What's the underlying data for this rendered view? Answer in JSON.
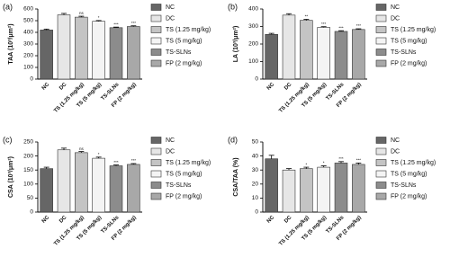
{
  "chart_data": [
    {
      "type": "bar",
      "panel_label": "(a)",
      "y_label": "TAA (10³/μm²)",
      "categories": [
        "NC",
        "DC",
        "TS (1.25 mg/kg)",
        "TS (5 mg/kg)",
        "TS-SLNs",
        "FP (2 mg/kg)"
      ],
      "values": [
        420,
        550,
        530,
        495,
        440,
        450
      ],
      "errors": [
        8,
        12,
        8,
        6,
        5,
        6
      ],
      "annotations": [
        null,
        null,
        "ns",
        "*",
        "***",
        "***"
      ],
      "colors": [
        "#666666",
        "#e6e6e6",
        "#c4c4c4",
        "#f4f4f4",
        "#8c8c8c",
        "#a8a8a8"
      ],
      "ylim": [
        0,
        600
      ],
      "yticks": [
        0,
        100,
        200,
        300,
        400,
        500,
        600
      ]
    },
    {
      "type": "bar",
      "panel_label": "(b)",
      "y_label": "LA (10³/μm²)",
      "categories": [
        "NC",
        "DC",
        "TS (1.25 mg/kg)",
        "TS (5 mg/kg)",
        "TS-SLNs",
        "FP (2 mg/kg)"
      ],
      "values": [
        255,
        365,
        335,
        295,
        272,
        283
      ],
      "errors": [
        6,
        8,
        6,
        4,
        4,
        4
      ],
      "annotations": [
        null,
        null,
        "**",
        "***",
        "***",
        "***"
      ],
      "colors": [
        "#666666",
        "#e6e6e6",
        "#c4c4c4",
        "#f4f4f4",
        "#8c8c8c",
        "#a8a8a8"
      ],
      "ylim": [
        0,
        400
      ],
      "yticks": [
        0,
        100,
        200,
        300,
        400
      ]
    },
    {
      "type": "bar",
      "panel_label": "(c)",
      "y_label": "CSA (10³/μm²)",
      "categories": [
        "NC",
        "DC",
        "TS (1.25 mg/kg)",
        "TS (5 mg/kg)",
        "TS-SLNs",
        "FP (2 mg/kg)"
      ],
      "values": [
        155,
        222,
        212,
        192,
        165,
        170
      ],
      "errors": [
        5,
        6,
        4,
        4,
        3,
        3
      ],
      "annotations": [
        null,
        null,
        "ns",
        "*",
        "***",
        "***"
      ],
      "colors": [
        "#666666",
        "#e6e6e6",
        "#c4c4c4",
        "#f4f4f4",
        "#8c8c8c",
        "#a8a8a8"
      ],
      "ylim": [
        0,
        250
      ],
      "yticks": [
        0,
        50,
        100,
        150,
        200,
        250
      ]
    },
    {
      "type": "bar",
      "panel_label": "(d)",
      "y_label": "CSA/TAA (%)",
      "categories": [
        "NC",
        "DC",
        "TS (1.25 mg/kg)",
        "TS (5 mg/kg)",
        "TS-SLNs",
        "FP (2 mg/kg)"
      ],
      "values": [
        38,
        30,
        31,
        32,
        35,
        34
      ],
      "errors": [
        2.5,
        1,
        1,
        1,
        1,
        1
      ],
      "annotations": [
        null,
        null,
        "*",
        "*",
        "***",
        "***"
      ],
      "colors": [
        "#666666",
        "#e6e6e6",
        "#c4c4c4",
        "#f4f4f4",
        "#8c8c8c",
        "#a8a8a8"
      ],
      "ylim": [
        0,
        50
      ],
      "yticks": [
        0,
        10,
        20,
        30,
        40,
        50
      ]
    }
  ]
}
